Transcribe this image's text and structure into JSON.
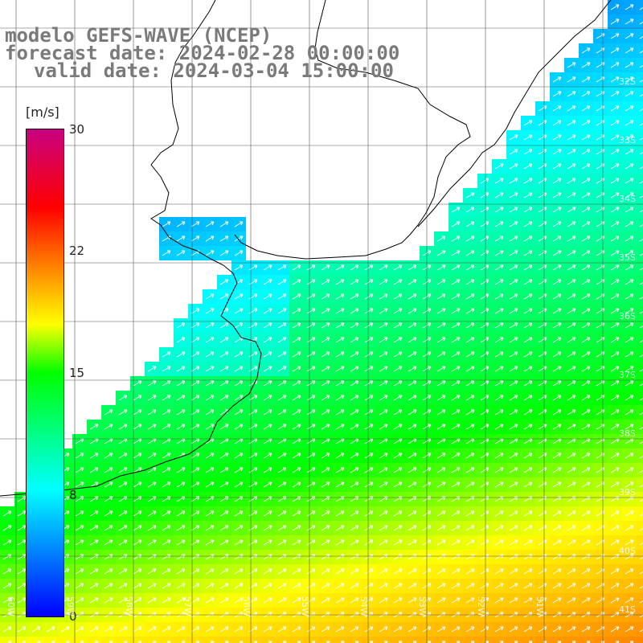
{
  "header": {
    "line1": "modelo GEFS-WAVE (NCEP)",
    "line2": "forecast date: 2024-02-28 00:00:00",
    "line3": "valid date: 2024-03-04 15:00:00"
  },
  "colorbar": {
    "unit": "[m/s]",
    "ticks": [
      "30",
      "22",
      "15",
      "8",
      "0"
    ],
    "min": 0,
    "max": 30,
    "colors": [
      "#0000ff",
      "#00ffff",
      "#00ff00",
      "#ffff00",
      "#ff8000",
      "#ff0000",
      "#c80080"
    ]
  },
  "lat_labels": [
    "32S",
    "33S",
    "34S",
    "35S",
    "36S",
    "37S",
    "38S",
    "39S",
    "40S",
    "41S"
  ],
  "lon_labels": [
    "60W",
    "59W",
    "58W",
    "57W",
    "56W",
    "55W",
    "54W",
    "53W",
    "52W",
    "51W"
  ],
  "colors": {
    "land": "#ffffff",
    "grid": "#555555",
    "coast": "#000000",
    "arrow": "#ffffff",
    "title": "#7a7a7a"
  }
}
